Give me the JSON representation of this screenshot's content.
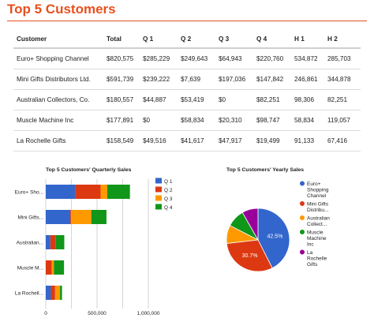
{
  "page": {
    "title": "Top 5 Customers"
  },
  "table": {
    "columns": [
      "Customer",
      "Total",
      "Q 1",
      "Q 2",
      "Q 3",
      "Q 4",
      "H 1",
      "H 2"
    ],
    "rows": [
      [
        "Euro+ Shopping Channel",
        "$820,575",
        "$285,229",
        "$249,643",
        "$64,943",
        "$220,760",
        "534,872",
        "285,703"
      ],
      [
        "Mini Gifts Distributors Ltd.",
        "$591,739",
        "$239,222",
        "$7,639",
        "$197,036",
        "$147,842",
        "246,861",
        "344,878"
      ],
      [
        "Australian Collectors, Co.",
        "$180,557",
        "$44,887",
        "$53,419",
        "$0",
        "$82,251",
        "98,306",
        "82,251"
      ],
      [
        "Muscle Machine Inc",
        "$177,891",
        "$0",
        "$58,834",
        "$20,310",
        "$98,747",
        "58,834",
        "119,057"
      ],
      [
        "La Rochelle Gifts",
        "$158,549",
        "$49,516",
        "$41,617",
        "$47,917",
        "$19,499",
        "91,133",
        "67,416"
      ]
    ]
  },
  "chart_data": [
    {
      "type": "bar",
      "orientation": "horizontal",
      "stacked": true,
      "title": "Top 5 Customers' Quarterly Sales",
      "categories": [
        "Euro+ Sho...",
        "Mini Gifts...",
        "Australian...",
        "Muscle M...",
        "La Rochell..."
      ],
      "series": [
        {
          "name": "Q 1",
          "color": "#3366cc",
          "values": [
            285229,
            239222,
            44887,
            0,
            49516
          ]
        },
        {
          "name": "Q 2",
          "color": "#dc3912",
          "values": [
            249643,
            7639,
            53419,
            58834,
            41617
          ]
        },
        {
          "name": "Q 3",
          "color": "#ff9900",
          "values": [
            64943,
            197036,
            0,
            20310,
            47917
          ]
        },
        {
          "name": "Q 4",
          "color": "#109618",
          "values": [
            220760,
            147842,
            82251,
            98747,
            19499
          ]
        }
      ],
      "xlim": [
        0,
        1000000
      ],
      "xticks_upper": [
        "0",
        "500,000",
        "1,000,000"
      ],
      "xticks_lower": [
        "250,000",
        "750,000"
      ],
      "legend": "right"
    },
    {
      "type": "pie",
      "title": "Top 5 Customers' Yearly Sales",
      "labels": [
        "Euro+ Shopping Channel",
        "Mini Gifts Distribu...",
        "Australian Collect...",
        "Muscle Machine Inc",
        "La Rochelle Gifts"
      ],
      "legend_lines": [
        [
          "Euro+",
          "Shopping",
          "Channel"
        ],
        [
          "Mini Gifts",
          "Distribu..."
        ],
        [
          "Australian",
          "Collect..."
        ],
        [
          "Muscle",
          "Machine",
          "Inc"
        ],
        [
          "La",
          "Rochelle",
          "Gifts"
        ]
      ],
      "values": [
        820575,
        591739,
        180557,
        177891,
        158549
      ],
      "colors": [
        "#3366cc",
        "#dc3912",
        "#ff9900",
        "#109618",
        "#990099"
      ],
      "slice_labels": [
        "42.5%",
        "30.7%",
        "",
        "",
        ""
      ],
      "legend": "right"
    }
  ]
}
